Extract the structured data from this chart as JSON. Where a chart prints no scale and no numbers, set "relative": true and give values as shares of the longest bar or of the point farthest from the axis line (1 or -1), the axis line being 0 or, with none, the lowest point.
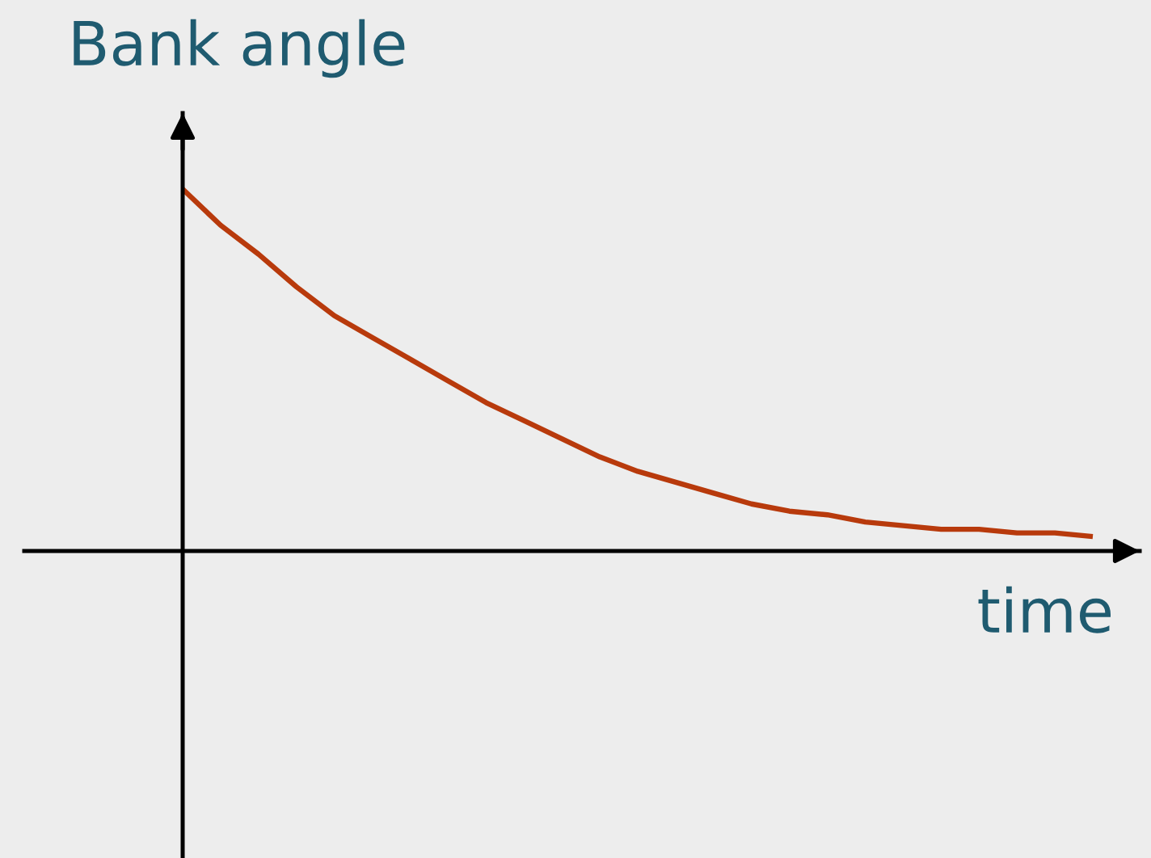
{
  "chart_data": {
    "type": "line",
    "xlabel": "time",
    "ylabel": "Bank angle",
    "relative": true,
    "categories": [
      null,
      null,
      null,
      null,
      null,
      null,
      null,
      null,
      null,
      null,
      null,
      null,
      null,
      null,
      null,
      null,
      null,
      null,
      null,
      null,
      null,
      null,
      null,
      null,
      null
    ],
    "series": [
      {
        "color": "#b83a0c",
        "values": [
          1,
          0.9,
          0.82,
          0.73,
          0.65,
          0.59,
          0.53,
          0.47,
          0.41,
          0.36,
          0.31,
          0.26,
          0.22,
          0.19,
          0.16,
          0.13,
          0.11,
          0.1,
          0.08,
          0.07,
          0.06,
          0.06,
          0.05,
          0.05,
          0.04
        ]
      }
    ]
  }
}
